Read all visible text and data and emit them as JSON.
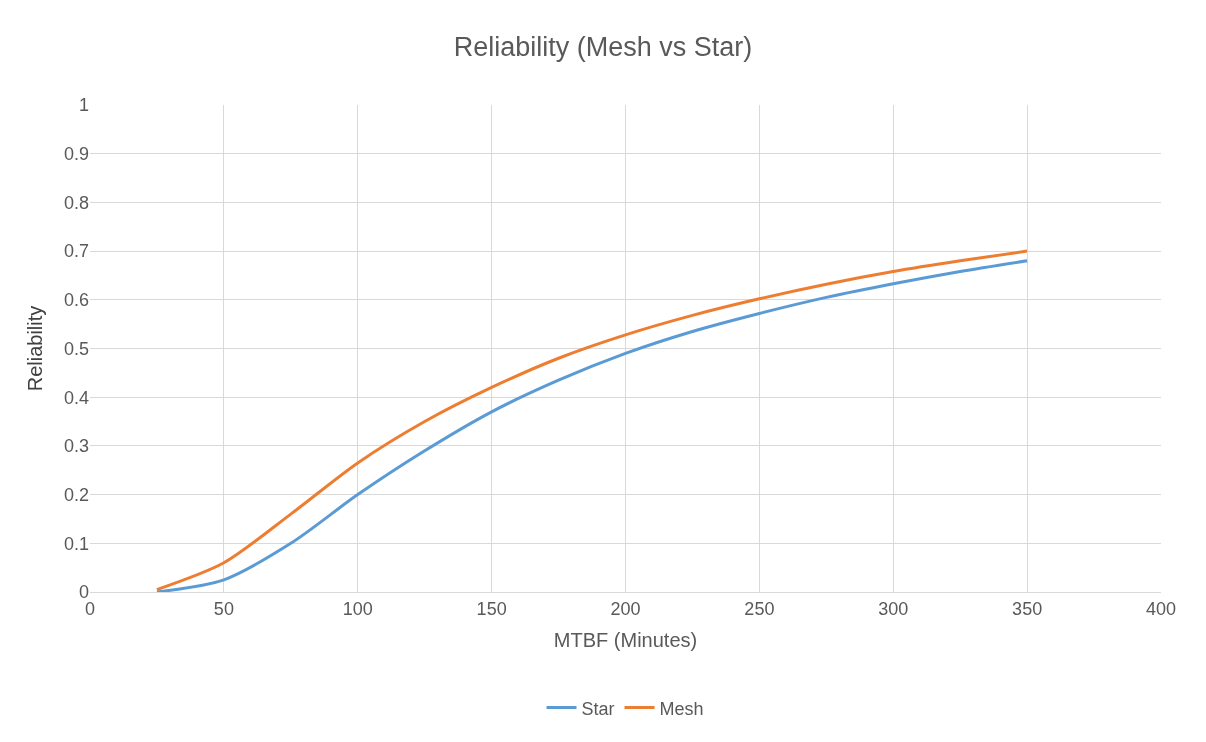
{
  "chart_data": {
    "type": "line",
    "title": "Reliability (Mesh vs Star)",
    "xlabel": "MTBF (Minutes)",
    "ylabel": "Reliability",
    "x": [
      25,
      50,
      75,
      100,
      125,
      150,
      175,
      200,
      225,
      250,
      275,
      300,
      325,
      350
    ],
    "series": [
      {
        "name": "Star",
        "color": "#5b9bd5",
        "values": [
          0,
          0.025,
          0.1,
          0.2,
          0.29,
          0.37,
          0.435,
          0.49,
          0.535,
          0.572,
          0.605,
          0.633,
          0.658,
          0.68
        ]
      },
      {
        "name": "Mesh",
        "color": "#ed7d31",
        "values": [
          0.005,
          0.06,
          0.16,
          0.265,
          0.35,
          0.42,
          0.48,
          0.528,
          0.568,
          0.602,
          0.632,
          0.658,
          0.68,
          0.7
        ]
      }
    ],
    "xlim": [
      0,
      400
    ],
    "xticks": [
      0,
      50,
      100,
      150,
      200,
      250,
      300,
      350,
      400
    ],
    "ylim": [
      0,
      1
    ],
    "yticks": [
      0,
      0.1,
      0.2,
      0.3,
      0.4,
      0.5,
      0.6,
      0.7,
      0.8,
      0.9,
      1
    ],
    "grid": true,
    "legend": "bottom",
    "marker": "none",
    "line_style": "solid"
  }
}
